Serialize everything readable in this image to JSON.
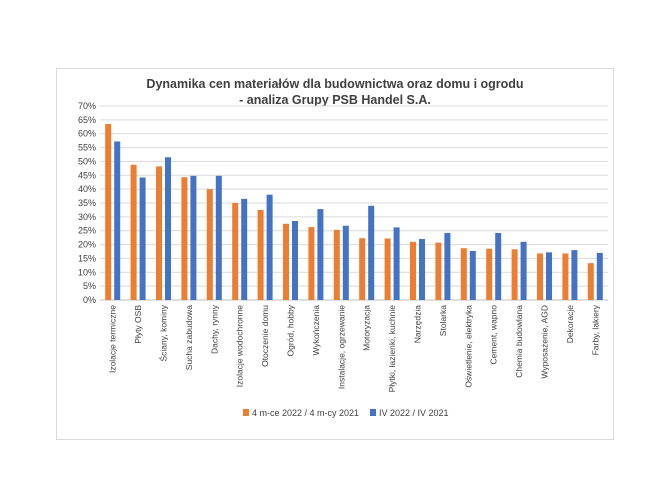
{
  "chart_data": {
    "type": "bar",
    "title_line1": "Dynamika cen materiałów dla budownictwa oraz domu i ogrodu",
    "title_line2": "- analiza Grupy PSB Handel S.A.",
    "xlabel": "",
    "ylabel": "",
    "ylim": [
      0,
      70
    ],
    "yticks": [
      "0%",
      "5%",
      "10%",
      "15%",
      "20%",
      "25%",
      "30%",
      "35%",
      "40%",
      "45%",
      "50%",
      "55%",
      "60%",
      "65%",
      "70%"
    ],
    "grid": true,
    "legend_position": "bottom",
    "categories": [
      "Izolacje termiczne",
      "Płyty OSB",
      "Ściany, kominy",
      "Sucha zabudowa",
      "Dachy, rynny",
      "Izolacje wodochronne",
      "Otoczenie domu",
      "Ogród, hobby",
      "Wykończenia",
      "Instalacje, ogrzewanie",
      "Motoryzacja",
      "Płytki, łazienki, kuchnie",
      "Narzędzia",
      "Stolarka",
      "Oświetlenie, elektryka",
      "Cement, wapno",
      "Chemia budowlana",
      "Wyposażenie, AGD",
      "Dekoracje",
      "Farby, lakiery"
    ],
    "series": [
      {
        "name": "4 m-ce 2022 / 4 m-cy 2021",
        "color": "#ed7d31",
        "values": [
          63.5,
          48.8,
          48.2,
          44.3,
          40.0,
          35.0,
          32.5,
          27.5,
          26.3,
          25.3,
          22.3,
          22.2,
          21.0,
          20.7,
          18.7,
          18.5,
          18.3,
          16.8,
          16.8,
          13.3
        ]
      },
      {
        "name": "IV 2022 / IV 2021",
        "color": "#4472c4",
        "values": [
          57.2,
          44.2,
          51.5,
          44.8,
          44.8,
          36.5,
          38.0,
          28.5,
          32.8,
          26.8,
          34.0,
          26.2,
          22.0,
          24.2,
          17.7,
          24.2,
          21.0,
          17.2,
          18.0,
          17.0
        ]
      }
    ]
  }
}
